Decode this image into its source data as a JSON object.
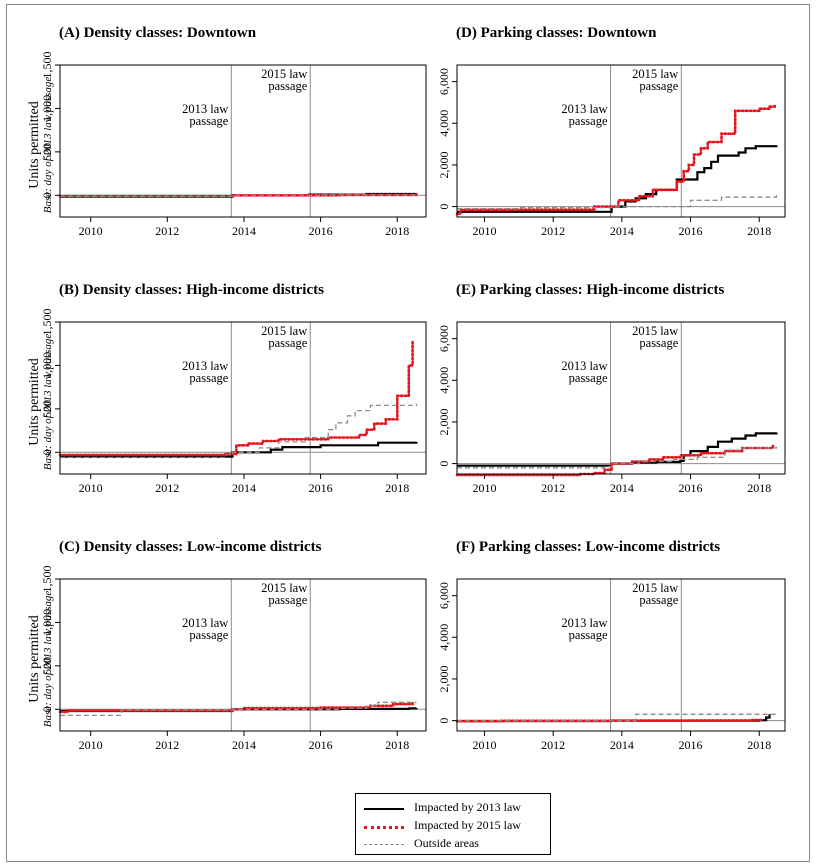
{
  "colors": {
    "impacted_2013": "#000000",
    "impacted_2015": "#e8141b",
    "outside": "#8c8c8c",
    "vline": "#8c8c8c"
  },
  "legend": {
    "items": [
      {
        "key": "impacted_2013",
        "label": "Impacted by 2013 law",
        "style": "solid"
      },
      {
        "key": "impacted_2015",
        "label": "Impacted by 2015 law",
        "style": "dotted"
      },
      {
        "key": "outside",
        "label": "Outside areas",
        "style": "dashed"
      }
    ]
  },
  "chart_data": [
    {
      "id": "A",
      "type": "line",
      "title": "(A) Density classes: Downtown",
      "ylabel": "Units permitted",
      "ysublabel": "Base: day of 2013 law passage",
      "xlim": [
        2009.2,
        2018.75
      ],
      "ylim": [
        -250,
        1500
      ],
      "yticks": [
        0,
        500,
        1000,
        1500
      ],
      "ytick_labels": [
        "0",
        "500",
        "1,000",
        "1,500"
      ],
      "xticks": [
        2010,
        2012,
        2014,
        2016,
        2018
      ],
      "vlines": [
        {
          "x": 2013.67,
          "label": "2013 law passage"
        },
        {
          "x": 2015.73,
          "label": "2015 law passage"
        }
      ],
      "series": [
        {
          "key": "impacted_2013",
          "name": "Impacted by 2013 law",
          "step": true,
          "points": [
            [
              2009.2,
              -15
            ],
            [
              2013.7,
              0
            ],
            [
              2015.7,
              8
            ],
            [
              2017.2,
              15
            ],
            [
              2018.5,
              22
            ]
          ]
        },
        {
          "key": "impacted_2015",
          "name": "Impacted by 2015 law",
          "step": true,
          "points": [
            [
              2009.2,
              -8
            ],
            [
              2013.7,
              0
            ],
            [
              2016.5,
              5
            ],
            [
              2018.5,
              12
            ]
          ]
        },
        {
          "key": "outside",
          "name": "Outside areas",
          "step": true,
          "points": [
            [
              2009.2,
              -12
            ],
            [
              2013.7,
              0
            ],
            [
              2016.0,
              6
            ],
            [
              2018.5,
              10
            ]
          ]
        }
      ]
    },
    {
      "id": "D",
      "type": "line",
      "title": "(D) Parking classes: Downtown",
      "ylabel": "",
      "ysublabel": "",
      "xlim": [
        2009.2,
        2018.75
      ],
      "ylim": [
        -500,
        6800
      ],
      "yticks": [
        0,
        2000,
        4000,
        6000
      ],
      "ytick_labels": [
        "0",
        "2,000",
        "4,000",
        "6,000"
      ],
      "xticks": [
        2010,
        2012,
        2014,
        2016,
        2018
      ],
      "vlines": [
        {
          "x": 2013.67,
          "label": "2013 law passage"
        },
        {
          "x": 2015.73,
          "label": "2015 law passage"
        }
      ],
      "series": [
        {
          "key": "impacted_2013",
          "name": "Impacted by 2013 law",
          "step": true,
          "points": [
            [
              2009.2,
              -250
            ],
            [
              2013.6,
              -250
            ],
            [
              2013.7,
              0
            ],
            [
              2014.1,
              250
            ],
            [
              2014.4,
              400
            ],
            [
              2014.7,
              600
            ],
            [
              2015.0,
              800
            ],
            [
              2015.6,
              1300
            ],
            [
              2016.1,
              1300
            ],
            [
              2016.2,
              1650
            ],
            [
              2016.4,
              1850
            ],
            [
              2016.6,
              2150
            ],
            [
              2016.8,
              2450
            ],
            [
              2017.4,
              2600
            ],
            [
              2017.6,
              2800
            ],
            [
              2017.9,
              2900
            ],
            [
              2018.5,
              2950
            ]
          ]
        },
        {
          "key": "impacted_2015",
          "name": "Impacted by 2015 law",
          "step": true,
          "points": [
            [
              2009.2,
              -350
            ],
            [
              2009.3,
              -150
            ],
            [
              2013.1,
              -150
            ],
            [
              2013.2,
              0
            ],
            [
              2013.9,
              300
            ],
            [
              2014.5,
              500
            ],
            [
              2014.9,
              800
            ],
            [
              2015.6,
              1200
            ],
            [
              2015.8,
              1700
            ],
            [
              2015.95,
              2000
            ],
            [
              2016.1,
              2500
            ],
            [
              2016.3,
              2800
            ],
            [
              2016.5,
              3100
            ],
            [
              2016.9,
              3500
            ],
            [
              2017.3,
              4600
            ],
            [
              2018.0,
              4700
            ],
            [
              2018.3,
              4800
            ],
            [
              2018.45,
              4900
            ]
          ]
        },
        {
          "key": "outside",
          "name": "Outside areas",
          "step": true,
          "points": [
            [
              2009.2,
              -100
            ],
            [
              2011.0,
              -50
            ],
            [
              2013.7,
              0
            ],
            [
              2016.0,
              300
            ],
            [
              2016.9,
              450
            ],
            [
              2018.5,
              550
            ]
          ]
        }
      ]
    },
    {
      "id": "B",
      "type": "line",
      "title": "(B) Density classes: High-income districts",
      "ylabel": "Units permitted",
      "ysublabel": "Base: day of 2013 law passage",
      "xlim": [
        2009.2,
        2018.75
      ],
      "ylim": [
        -250,
        1500
      ],
      "yticks": [
        0,
        500,
        1000,
        1500
      ],
      "ytick_labels": [
        "0",
        "500",
        "1,000",
        "1,500"
      ],
      "xticks": [
        2010,
        2012,
        2014,
        2016,
        2018
      ],
      "vlines": [
        {
          "x": 2013.67,
          "label": "2013 law passage"
        },
        {
          "x": 2015.73,
          "label": "2015 law passage"
        }
      ],
      "series": [
        {
          "key": "impacted_2013",
          "name": "Impacted by 2013 law",
          "step": true,
          "points": [
            [
              2009.2,
              -50
            ],
            [
              2013.5,
              -50
            ],
            [
              2013.7,
              0
            ],
            [
              2014.7,
              30
            ],
            [
              2015.0,
              60
            ],
            [
              2016.0,
              80
            ],
            [
              2017.5,
              110
            ],
            [
              2018.5,
              120
            ]
          ]
        },
        {
          "key": "impacted_2015",
          "name": "Impacted by 2015 law",
          "step": true,
          "points": [
            [
              2009.2,
              -30
            ],
            [
              2013.5,
              -20
            ],
            [
              2013.8,
              80
            ],
            [
              2014.1,
              100
            ],
            [
              2014.5,
              130
            ],
            [
              2014.9,
              150
            ],
            [
              2016.2,
              170
            ],
            [
              2017.0,
              200
            ],
            [
              2017.2,
              260
            ],
            [
              2017.4,
              330
            ],
            [
              2017.7,
              380
            ],
            [
              2018.0,
              650
            ],
            [
              2018.3,
              1000
            ],
            [
              2018.4,
              1280
            ]
          ]
        },
        {
          "key": "outside",
          "name": "Outside areas",
          "step": true,
          "points": [
            [
              2009.2,
              -60
            ],
            [
              2013.5,
              -30
            ],
            [
              2013.7,
              0
            ],
            [
              2014.4,
              50
            ],
            [
              2014.9,
              120
            ],
            [
              2015.6,
              170
            ],
            [
              2016.2,
              260
            ],
            [
              2016.4,
              340
            ],
            [
              2016.7,
              420
            ],
            [
              2016.9,
              480
            ],
            [
              2017.3,
              540
            ],
            [
              2018.5,
              560
            ]
          ]
        }
      ]
    },
    {
      "id": "E",
      "type": "line",
      "title": "(E) Parking classes: High-income districts",
      "ylabel": "",
      "ysublabel": "",
      "xlim": [
        2009.2,
        2018.75
      ],
      "ylim": [
        -500,
        6800
      ],
      "yticks": [
        0,
        2000,
        4000,
        6000
      ],
      "ytick_labels": [
        "0",
        "2,000",
        "4,000",
        "6,000"
      ],
      "xticks": [
        2010,
        2012,
        2014,
        2016,
        2018
      ],
      "vlines": [
        {
          "x": 2013.67,
          "label": "2013 law passage"
        },
        {
          "x": 2015.73,
          "label": "2015 law passage"
        }
      ],
      "series": [
        {
          "key": "impacted_2013",
          "name": "Impacted by 2013 law",
          "step": true,
          "points": [
            [
              2009.2,
              -100
            ],
            [
              2013.5,
              -100
            ],
            [
              2013.7,
              0
            ],
            [
              2014.3,
              50
            ],
            [
              2015.0,
              80
            ],
            [
              2015.7,
              130
            ],
            [
              2015.8,
              400
            ],
            [
              2016.0,
              600
            ],
            [
              2016.5,
              800
            ],
            [
              2016.8,
              1050
            ],
            [
              2017.2,
              1200
            ],
            [
              2017.6,
              1350
            ],
            [
              2017.9,
              1450
            ],
            [
              2018.5,
              1500
            ]
          ]
        },
        {
          "key": "impacted_2015",
          "name": "Impacted by 2015 law",
          "step": true,
          "points": [
            [
              2009.2,
              -550
            ],
            [
              2012.8,
              -500
            ],
            [
              2013.2,
              -450
            ],
            [
              2013.5,
              -300
            ],
            [
              2013.7,
              0
            ],
            [
              2014.3,
              100
            ],
            [
              2014.8,
              200
            ],
            [
              2015.2,
              300
            ],
            [
              2015.7,
              400
            ],
            [
              2016.3,
              500
            ],
            [
              2017.0,
              600
            ],
            [
              2017.5,
              750
            ],
            [
              2018.4,
              850
            ]
          ]
        },
        {
          "key": "outside",
          "name": "Outside areas",
          "step": true,
          "points": [
            [
              2009.2,
              -200
            ],
            [
              2013.5,
              -150
            ],
            [
              2013.7,
              0
            ],
            [
              2014.5,
              100
            ],
            [
              2015.5,
              200
            ],
            [
              2016.2,
              300
            ],
            [
              2017.0,
              650
            ],
            [
              2017.5,
              750
            ],
            [
              2018.5,
              800
            ]
          ]
        }
      ]
    },
    {
      "id": "C",
      "type": "line",
      "title": "(C) Density classes: Low-income districts",
      "ylabel": "Units permitted",
      "ysublabel": "Base: day of 2013 law passage",
      "xlim": [
        2009.2,
        2018.75
      ],
      "ylim": [
        -250,
        1500
      ],
      "yticks": [
        0,
        500,
        1000,
        1500
      ],
      "ytick_labels": [
        "0",
        "500",
        "1,000",
        "1,500"
      ],
      "xticks": [
        2010,
        2012,
        2014,
        2016,
        2018
      ],
      "vlines": [
        {
          "x": 2013.67,
          "label": "2013 law passage"
        },
        {
          "x": 2015.73,
          "label": "2015 law passage"
        }
      ],
      "series": [
        {
          "key": "impacted_2013",
          "name": "Impacted by 2013 law",
          "step": true,
          "points": [
            [
              2009.2,
              -20
            ],
            [
              2013.7,
              0
            ],
            [
              2016.5,
              5
            ],
            [
              2018.3,
              10
            ],
            [
              2018.5,
              15
            ]
          ]
        },
        {
          "key": "impacted_2015",
          "name": "Impacted by 2015 law",
          "step": true,
          "points": [
            [
              2009.2,
              -30
            ],
            [
              2009.4,
              -15
            ],
            [
              2013.7,
              0
            ],
            [
              2014.0,
              15
            ],
            [
              2016.0,
              20
            ],
            [
              2017.3,
              40
            ],
            [
              2017.9,
              60
            ],
            [
              2018.4,
              70
            ]
          ]
        },
        {
          "key": "outside",
          "name": "Outside areas",
          "step": true,
          "points": [
            [
              2009.2,
              -70
            ],
            [
              2010.8,
              -10
            ],
            [
              2013.7,
              0
            ],
            [
              2016.5,
              10
            ],
            [
              2017.2,
              40
            ],
            [
              2017.5,
              80
            ],
            [
              2018.5,
              80
            ]
          ]
        }
      ]
    },
    {
      "id": "F",
      "type": "line",
      "title": "(F) Parking classes: Low-income districts",
      "ylabel": "",
      "ysublabel": "",
      "xlim": [
        2009.2,
        2018.75
      ],
      "ylim": [
        -500,
        6800
      ],
      "yticks": [
        0,
        2000,
        4000,
        6000
      ],
      "ytick_labels": [
        "0",
        "2,000",
        "4,000",
        "6,000"
      ],
      "xticks": [
        2010,
        2012,
        2014,
        2016,
        2018
      ],
      "vlines": [
        {
          "x": 2013.67,
          "label": "2013 law passage"
        },
        {
          "x": 2015.73,
          "label": "2015 law passage"
        }
      ],
      "series": [
        {
          "key": "impacted_2013",
          "name": "Impacted by 2013 law",
          "step": true,
          "points": [
            [
              2009.2,
              -20
            ],
            [
              2013.7,
              0
            ],
            [
              2018.0,
              20
            ],
            [
              2018.2,
              150
            ],
            [
              2018.3,
              300
            ]
          ]
        },
        {
          "key": "impacted_2015",
          "name": "Impacted by 2015 law",
          "step": true,
          "points": [
            [
              2009.2,
              -30
            ],
            [
              2010.5,
              -10
            ],
            [
              2013.7,
              0
            ],
            [
              2016.0,
              10
            ],
            [
              2017.8,
              30
            ],
            [
              2018.1,
              60
            ]
          ]
        },
        {
          "key": "outside",
          "name": "Outside areas",
          "step": true,
          "points": [
            [
              2009.2,
              -10
            ],
            [
              2014.3,
              0
            ],
            [
              2014.4,
              300
            ],
            [
              2018.5,
              300
            ]
          ]
        }
      ]
    }
  ]
}
